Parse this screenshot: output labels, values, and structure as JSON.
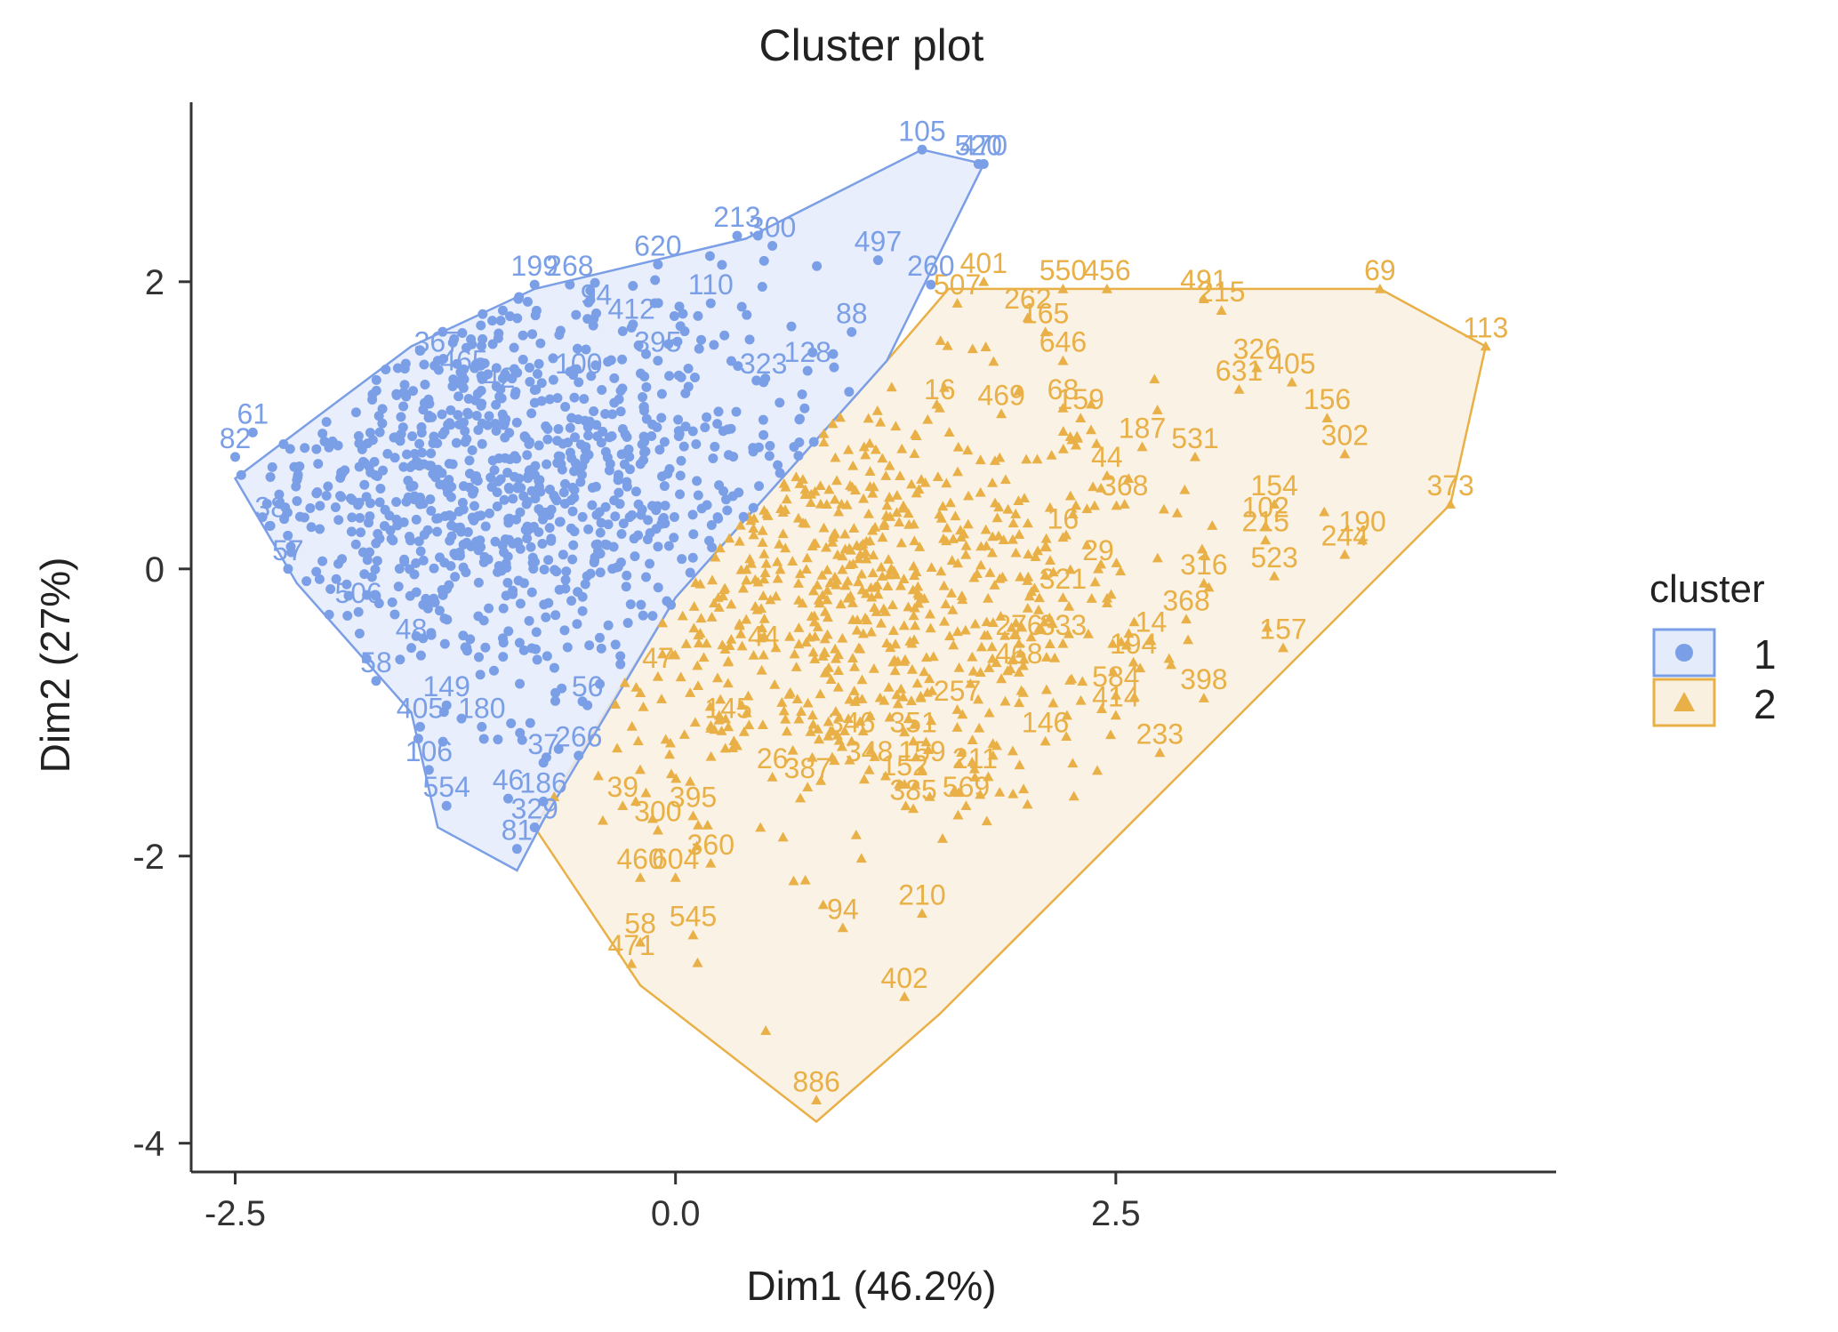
{
  "chart_data": {
    "type": "scatter",
    "title": "Cluster plot",
    "xlabel": "Dim1 (46.2%)",
    "ylabel": "Dim2 (27%)",
    "xlim": [
      -2.75,
      5.0
    ],
    "ylim": [
      -4.2,
      3.25
    ],
    "xticks": [
      -2.5,
      0.0,
      2.5
    ],
    "xtick_labels": [
      "-2.5",
      "0.0",
      "2.5"
    ],
    "yticks": [
      -4,
      -2,
      0,
      2
    ],
    "ytick_labels": [
      "-4",
      "-2",
      "0",
      "2"
    ],
    "grid": false,
    "legend": {
      "title": "cluster",
      "position": "right",
      "entries": [
        {
          "label": "1",
          "color": "#7b9fe6",
          "marker": "circle"
        },
        {
          "label": "2",
          "color": "#e8b046",
          "marker": "triangle"
        }
      ]
    },
    "series": [
      {
        "name": "1",
        "color": "#7b9fe6",
        "fill": "#e4ebfb",
        "marker": "circle",
        "hull": [
          [
            -2.5,
            0.63
          ],
          [
            -2.15,
            -0.1
          ],
          [
            -1.5,
            -1.0
          ],
          [
            -1.35,
            -1.8
          ],
          [
            -0.9,
            -2.1
          ],
          [
            -0.75,
            -1.75
          ],
          [
            0.0,
            -0.2
          ],
          [
            1.2,
            1.45
          ],
          [
            1.4,
            1.95
          ],
          [
            1.75,
            2.82
          ],
          [
            1.4,
            2.92
          ],
          [
            0.4,
            2.3
          ],
          [
            -0.8,
            1.95
          ],
          [
            -1.5,
            1.55
          ],
          [
            -2.1,
            1.0
          ]
        ],
        "labeled_points": [
          {
            "x": 1.4,
            "y": 2.92,
            "label": "105"
          },
          {
            "x": 1.75,
            "y": 2.82,
            "label": "470"
          },
          {
            "x": 1.72,
            "y": 2.82,
            "label": "520"
          },
          {
            "x": 0.35,
            "y": 2.32,
            "label": "213"
          },
          {
            "x": 0.55,
            "y": 2.25,
            "label": "300"
          },
          {
            "x": -0.1,
            "y": 2.12,
            "label": "620"
          },
          {
            "x": 1.15,
            "y": 2.15,
            "label": "497"
          },
          {
            "x": 1.45,
            "y": 1.98,
            "label": "260"
          },
          {
            "x": -0.8,
            "y": 1.98,
            "label": "199"
          },
          {
            "x": -0.6,
            "y": 1.98,
            "label": "268"
          },
          {
            "x": 0.2,
            "y": 1.85,
            "label": "110"
          },
          {
            "x": -0.45,
            "y": 1.78,
            "label": "94"
          },
          {
            "x": -0.25,
            "y": 1.68,
            "label": "412"
          },
          {
            "x": -1.35,
            "y": 1.45,
            "label": "367"
          },
          {
            "x": -0.1,
            "y": 1.45,
            "label": "395"
          },
          {
            "x": -1.2,
            "y": 1.32,
            "label": "465"
          },
          {
            "x": -0.55,
            "y": 1.3,
            "label": "100"
          },
          {
            "x": 0.5,
            "y": 1.3,
            "label": "323"
          },
          {
            "x": -1.0,
            "y": 1.2,
            "label": "42"
          },
          {
            "x": 0.75,
            "y": 1.38,
            "label": "128"
          },
          {
            "x": 1.0,
            "y": 1.65,
            "label": "88"
          },
          {
            "x": -2.5,
            "y": 0.78,
            "label": "82"
          },
          {
            "x": -2.4,
            "y": 0.95,
            "label": "61"
          },
          {
            "x": -2.3,
            "y": 0.3,
            "label": "38"
          },
          {
            "x": -2.2,
            "y": 0.0,
            "label": "57"
          },
          {
            "x": -1.8,
            "y": -0.3,
            "label": "506"
          },
          {
            "x": -1.5,
            "y": -0.55,
            "label": "48"
          },
          {
            "x": -1.7,
            "y": -0.78,
            "label": "58"
          },
          {
            "x": -1.3,
            "y": -0.95,
            "label": "149"
          },
          {
            "x": -1.45,
            "y": -1.1,
            "label": "405"
          },
          {
            "x": -1.1,
            "y": -1.1,
            "label": "180"
          },
          {
            "x": -1.4,
            "y": -1.4,
            "label": "106"
          },
          {
            "x": -1.3,
            "y": -1.65,
            "label": "554"
          },
          {
            "x": -0.95,
            "y": -1.6,
            "label": "46"
          },
          {
            "x": -0.75,
            "y": -1.62,
            "label": "186"
          },
          {
            "x": -0.9,
            "y": -1.95,
            "label": "81"
          },
          {
            "x": -0.8,
            "y": -1.8,
            "label": "329"
          },
          {
            "x": -0.75,
            "y": -1.35,
            "label": "37"
          },
          {
            "x": -0.55,
            "y": -1.3,
            "label": "266"
          },
          {
            "x": -0.5,
            "y": -0.95,
            "label": "56"
          }
        ],
        "cloud": {
          "n": 900,
          "center": [
            -1.0,
            0.6
          ],
          "spread": [
            0.9,
            0.75
          ]
        }
      },
      {
        "name": "2",
        "color": "#e8b046",
        "fill": "#f9f0df",
        "marker": "triangle",
        "hull": [
          [
            -0.8,
            -1.8
          ],
          [
            -0.2,
            -2.9
          ],
          [
            0.8,
            -3.85
          ],
          [
            1.5,
            -3.1
          ],
          [
            4.4,
            0.45
          ],
          [
            4.6,
            1.55
          ],
          [
            4.0,
            1.95
          ],
          [
            1.55,
            1.95
          ],
          [
            1.2,
            1.45
          ],
          [
            0.0,
            -0.2
          ]
        ],
        "labeled_points": [
          {
            "x": 4.0,
            "y": 1.95,
            "label": "69"
          },
          {
            "x": 4.6,
            "y": 1.55,
            "label": "113"
          },
          {
            "x": 4.4,
            "y": 0.45,
            "label": "373"
          },
          {
            "x": 1.75,
            "y": 2.0,
            "label": "401"
          },
          {
            "x": 2.2,
            "y": 1.95,
            "label": "550"
          },
          {
            "x": 2.45,
            "y": 1.95,
            "label": "456"
          },
          {
            "x": 3.0,
            "y": 1.88,
            "label": "491"
          },
          {
            "x": 3.1,
            "y": 1.8,
            "label": "215"
          },
          {
            "x": 1.6,
            "y": 1.85,
            "label": "507"
          },
          {
            "x": 2.0,
            "y": 1.75,
            "label": "262"
          },
          {
            "x": 2.1,
            "y": 1.65,
            "label": "165"
          },
          {
            "x": 2.2,
            "y": 1.45,
            "label": "646"
          },
          {
            "x": 3.3,
            "y": 1.4,
            "label": "326"
          },
          {
            "x": 3.5,
            "y": 1.3,
            "label": "405"
          },
          {
            "x": 3.2,
            "y": 1.25,
            "label": "631"
          },
          {
            "x": 1.5,
            "y": 1.12,
            "label": "16"
          },
          {
            "x": 1.85,
            "y": 1.08,
            "label": "469"
          },
          {
            "x": 2.2,
            "y": 1.12,
            "label": "68"
          },
          {
            "x": 2.3,
            "y": 1.05,
            "label": "159"
          },
          {
            "x": 3.7,
            "y": 1.05,
            "label": "156"
          },
          {
            "x": 2.65,
            "y": 0.85,
            "label": "187"
          },
          {
            "x": 2.95,
            "y": 0.78,
            "label": "531"
          },
          {
            "x": 3.8,
            "y": 0.8,
            "label": "302"
          },
          {
            "x": 2.45,
            "y": 0.65,
            "label": "44"
          },
          {
            "x": 2.55,
            "y": 0.45,
            "label": "368"
          },
          {
            "x": 3.4,
            "y": 0.45,
            "label": "154"
          },
          {
            "x": 3.35,
            "y": 0.3,
            "label": "102"
          },
          {
            "x": 3.35,
            "y": 0.2,
            "label": "215"
          },
          {
            "x": 3.9,
            "y": 0.2,
            "label": "190"
          },
          {
            "x": 3.8,
            "y": 0.1,
            "label": "244"
          },
          {
            "x": 2.2,
            "y": 0.22,
            "label": "16"
          },
          {
            "x": 2.4,
            "y": 0.0,
            "label": "29"
          },
          {
            "x": 3.0,
            "y": -0.1,
            "label": "316"
          },
          {
            "x": 3.4,
            "y": -0.05,
            "label": "523"
          },
          {
            "x": 2.2,
            "y": -0.2,
            "label": "321"
          },
          {
            "x": 2.9,
            "y": -0.35,
            "label": "368"
          },
          {
            "x": 2.7,
            "y": -0.5,
            "label": "14"
          },
          {
            "x": 3.45,
            "y": -0.55,
            "label": "157"
          },
          {
            "x": 1.95,
            "y": -0.52,
            "label": "276"
          },
          {
            "x": 2.2,
            "y": -0.52,
            "label": "333"
          },
          {
            "x": 2.6,
            "y": -0.65,
            "label": "194"
          },
          {
            "x": 1.95,
            "y": -0.72,
            "label": "468"
          },
          {
            "x": 2.5,
            "y": -0.88,
            "label": "584"
          },
          {
            "x": 3.0,
            "y": -0.9,
            "label": "398"
          },
          {
            "x": 2.5,
            "y": -1.02,
            "label": "414"
          },
          {
            "x": 1.6,
            "y": -0.98,
            "label": "257"
          },
          {
            "x": 2.1,
            "y": -1.2,
            "label": "146"
          },
          {
            "x": 2.75,
            "y": -1.28,
            "label": "233"
          },
          {
            "x": 1.0,
            "y": -1.2,
            "label": "346"
          },
          {
            "x": 1.35,
            "y": -1.2,
            "label": "351"
          },
          {
            "x": 1.7,
            "y": -1.45,
            "label": "211"
          },
          {
            "x": 1.1,
            "y": -1.4,
            "label": "348"
          },
          {
            "x": 1.4,
            "y": -1.4,
            "label": "159"
          },
          {
            "x": 1.3,
            "y": -1.5,
            "label": "152"
          },
          {
            "x": 1.35,
            "y": -1.67,
            "label": "385"
          },
          {
            "x": 1.65,
            "y": -1.65,
            "label": "569"
          },
          {
            "x": 0.55,
            "y": -1.45,
            "label": "26"
          },
          {
            "x": 0.75,
            "y": -1.52,
            "label": "387"
          },
          {
            "x": -0.3,
            "y": -1.65,
            "label": "39"
          },
          {
            "x": 0.1,
            "y": -1.72,
            "label": "395"
          },
          {
            "x": -0.1,
            "y": -1.82,
            "label": "300"
          },
          {
            "x": 0.2,
            "y": -2.05,
            "label": "360"
          },
          {
            "x": -0.2,
            "y": -2.15,
            "label": "460"
          },
          {
            "x": 0.0,
            "y": -2.15,
            "label": "604"
          },
          {
            "x": 0.95,
            "y": -2.5,
            "label": "94"
          },
          {
            "x": 1.4,
            "y": -2.4,
            "label": "210"
          },
          {
            "x": -0.2,
            "y": -2.6,
            "label": "58"
          },
          {
            "x": 0.1,
            "y": -2.55,
            "label": "545"
          },
          {
            "x": -0.25,
            "y": -2.75,
            "label": "471"
          },
          {
            "x": 1.3,
            "y": -2.98,
            "label": "402"
          },
          {
            "x": 0.8,
            "y": -3.7,
            "label": "886"
          },
          {
            "x": 0.5,
            "y": -0.6,
            "label": "44"
          },
          {
            "x": 0.3,
            "y": -1.1,
            "label": "145"
          },
          {
            "x": -0.1,
            "y": -0.75,
            "label": "47"
          }
        ],
        "cloud": {
          "n": 700,
          "center": [
            1.0,
            -0.2
          ],
          "spread": [
            0.85,
            0.75
          ]
        }
      }
    ]
  }
}
